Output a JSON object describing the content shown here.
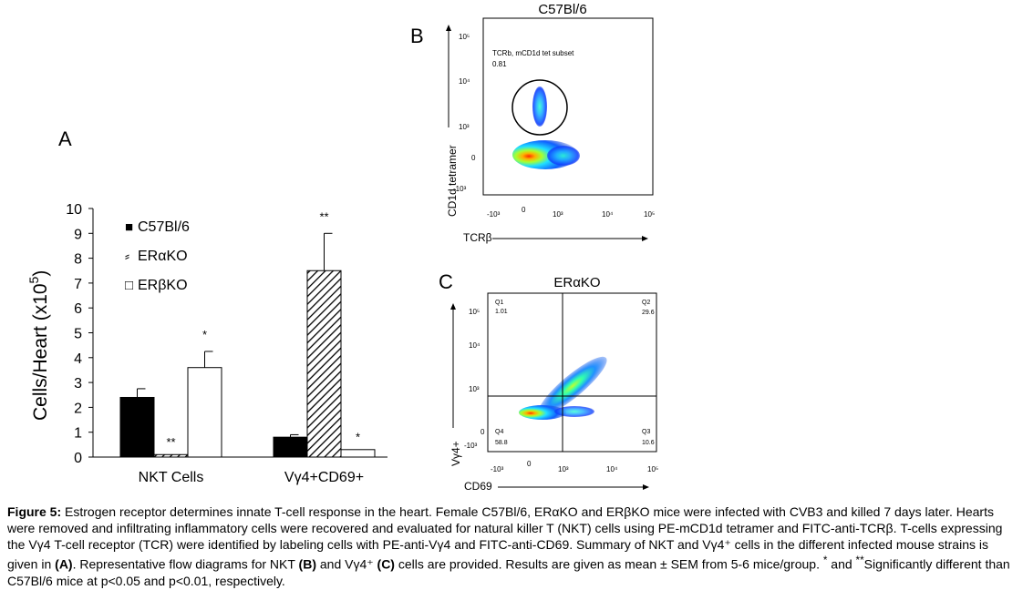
{
  "panel_labels": {
    "a": "A",
    "b": "B",
    "c": "C"
  },
  "chart_data": [
    {
      "type": "bar",
      "ylabel": "Cells/Heart (x10",
      "ylabel_sup": "5",
      "ylabel_close": ")",
      "ylim": [
        0,
        10
      ],
      "yticks": [
        "0",
        "1",
        "2",
        "3",
        "4",
        "5",
        "6",
        "7",
        "8",
        "9",
        "10"
      ],
      "categories": [
        "NKT Cells",
        "Vγ4+CD69+"
      ],
      "series": [
        {
          "name": "C57Bl/6",
          "values": [
            2.4,
            0.8
          ],
          "sem": [
            0.35,
            0.1
          ],
          "sig": [
            "",
            ""
          ],
          "fill": "#000000"
        },
        {
          "name": "ERαKO",
          "values": [
            0.1,
            7.5
          ],
          "sem": [
            0.05,
            1.5
          ],
          "sig": [
            "**",
            "**"
          ],
          "fill": "hatch"
        },
        {
          "name": "ERβKO",
          "values": [
            3.6,
            0.3
          ],
          "sem": [
            0.65,
            0.05
          ],
          "sig": [
            "*",
            "*"
          ],
          "fill": "#ffffff"
        }
      ],
      "legend": [
        {
          "symbol": "■",
          "label": "C57Bl/6"
        },
        {
          "symbol": "⸗",
          "label": "ERαKO"
        },
        {
          "symbol": "□",
          "label": "ERβKO"
        }
      ]
    },
    {
      "type": "scatter",
      "title": "C57Bl/6",
      "xlabel": "TCRβ",
      "ylabel": "CD1d tetramer",
      "xticks": [
        "-10³",
        "0",
        "10³",
        "10⁴",
        "10⁵"
      ],
      "yticks": [
        "10⁵",
        "10⁴",
        "10³",
        "0",
        "-10³"
      ],
      "gate_label": "TCRb, mCD1d tet subset",
      "gate_value": "0.81"
    },
    {
      "type": "scatter",
      "title": "ERαKO",
      "xlabel": "CD69",
      "ylabel": "Vγ4+",
      "xticks": [
        "-10³",
        "0",
        "10³",
        "10⁴",
        "10⁵"
      ],
      "yticks": [
        "10⁵",
        "10⁴",
        "10³",
        "0",
        "-10³"
      ],
      "quadrants": [
        {
          "name": "Q1",
          "value": "1.01"
        },
        {
          "name": "Q2",
          "value": "29.6"
        },
        {
          "name": "Q3",
          "value": "10.6"
        },
        {
          "name": "Q4",
          "value": "58.8"
        }
      ]
    }
  ],
  "caption": {
    "bold_lead": "Figure 5:",
    "p1": " Estrogen receptor determines innate  T-cell response in the heart. Female C57Bl/6, ERαKO and ERβKO mice were infected with CVB3 and killed 7 days later. Hearts were removed and infiltrating inflammatory cells were recovered and evaluated for natural killer T (NKT) cells using PE-mCD1d tetramer and FITC-anti-TCRβ.  T-cells expressing the Vγ4  T-cell receptor (TCR) were identified by labeling cells with PE-anti-Vγ4 and FITC-anti-CD69. Summary of NKT and Vγ4⁺ cells in the different infected mouse strains is given in ",
    "ref_a": "(A)",
    "p2": ". Representative flow diagrams for NKT ",
    "ref_b": "(B)",
    "p3": " and Vγ4⁺ ",
    "ref_c": "(C)",
    "p4": " cells are provided. Results are given as mean ± SEM from 5-6 mice/group. ",
    "sym1": "*",
    "p5": " and ",
    "sym2": "**",
    "p6": "Significantly different than C57Bl/6 mice at p<0.05 and p<0.01, respectively."
  }
}
